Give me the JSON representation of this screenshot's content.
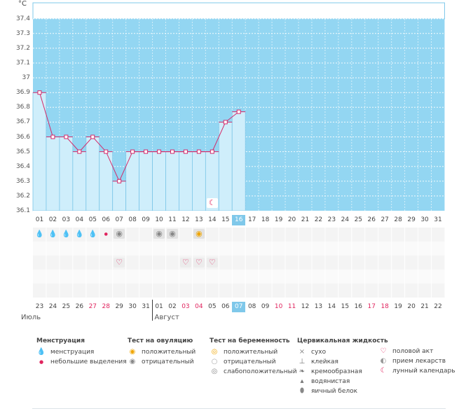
{
  "unit": "°C",
  "colors": {
    "plot_bg": "#93d6f2",
    "bar_fill": "#cfeefb",
    "bar_border": "#7cc6e8",
    "line": "#d42a6a",
    "marker_border": "#d42a6a",
    "grid_dots": "#ffffff",
    "highlight": "#7fc8ea",
    "accent_red": "#e0245e"
  },
  "chart_data": {
    "type": "line",
    "title": "",
    "xlabel": "",
    "ylabel": "°C",
    "ylim": [
      36.1,
      37.5
    ],
    "yticks": [
      "37.4",
      "37.3",
      "37.2",
      "37.1",
      "37",
      "36.9",
      "36.8",
      "36.7",
      "36.6",
      "36.5",
      "36.4",
      "36.3",
      "36.2",
      "36.1"
    ],
    "categories": [
      "01",
      "02",
      "03",
      "04",
      "05",
      "06",
      "07",
      "08",
      "09",
      "10",
      "11",
      "12",
      "13",
      "14",
      "15",
      "16",
      "17",
      "18",
      "19",
      "20",
      "21",
      "22",
      "23",
      "24",
      "25",
      "26",
      "27",
      "28",
      "29",
      "30",
      "31"
    ],
    "series": [
      {
        "values": [
          36.9,
          36.6,
          36.6,
          36.5,
          36.6,
          36.5,
          36.3,
          36.5,
          36.5,
          36.5,
          36.5,
          36.5,
          36.5,
          36.5,
          36.7,
          36.77,
          null,
          null,
          null,
          null,
          null,
          null,
          null,
          null,
          null,
          null,
          null,
          null,
          null,
          null,
          null
        ]
      }
    ],
    "grid": true,
    "highlight_day": "16"
  },
  "calendar": {
    "dates": [
      "23",
      "24",
      "25",
      "26",
      "27",
      "28",
      "29",
      "30",
      "31",
      "01",
      "02",
      "03",
      "04",
      "05",
      "06",
      "07",
      "08",
      "09",
      "10",
      "11",
      "12",
      "13",
      "14",
      "15",
      "16",
      "17",
      "18",
      "19",
      "20",
      "21",
      "22"
    ],
    "red": [
      4,
      5,
      11,
      12,
      18,
      19,
      25,
      26
    ],
    "highlight": 15,
    "months": [
      {
        "label": "Июль",
        "start": 0
      },
      {
        "label": "Август",
        "start": 9
      }
    ]
  },
  "marks": {
    "menstruation": [
      0,
      1,
      2,
      3,
      4
    ],
    "spotting": [
      5
    ],
    "ovulation_negative": [
      6,
      9,
      10
    ],
    "ovulation_positive": [
      12
    ],
    "intercourse": [
      6,
      11,
      12,
      13
    ],
    "lunar": [
      13
    ]
  },
  "legend": {
    "menstruation": {
      "title": "Менструация",
      "items": [
        {
          "icon": "menstruation-drop-icon",
          "label": "менструация"
        },
        {
          "icon": "spotting-drop-icon",
          "label": "небольшие выделения"
        }
      ]
    },
    "ovulation": {
      "title": "Тест на овуляцию",
      "items": [
        {
          "icon": "ovulation-positive-icon",
          "label": "положительный"
        },
        {
          "icon": "ovulation-negative-icon",
          "label": "отрицательный"
        }
      ]
    },
    "pregnancy": {
      "title": "Тест на беременность",
      "items": [
        {
          "icon": "pregnancy-positive-icon",
          "label": "положительный"
        },
        {
          "icon": "pregnancy-negative-icon",
          "label": "отрицательный"
        },
        {
          "icon": "pregnancy-weak-icon",
          "label": "слабоположительный"
        }
      ]
    },
    "cervical": {
      "title": "Цервикальная жидкость",
      "items": [
        {
          "icon": "dry-icon",
          "label": "сухо"
        },
        {
          "icon": "sticky-icon",
          "label": "клейкая"
        },
        {
          "icon": "creamy-icon",
          "label": "кремообразная"
        },
        {
          "icon": "watery-icon",
          "label": "водянистая"
        },
        {
          "icon": "egg-white-icon",
          "label": "яичный белок"
        }
      ]
    },
    "other": {
      "items": [
        {
          "icon": "heart-icon",
          "label": "половой акт"
        },
        {
          "icon": "pill-icon",
          "label": "прием лекарств"
        },
        {
          "icon": "moon-icon",
          "label": "лунный календарь"
        }
      ]
    }
  }
}
